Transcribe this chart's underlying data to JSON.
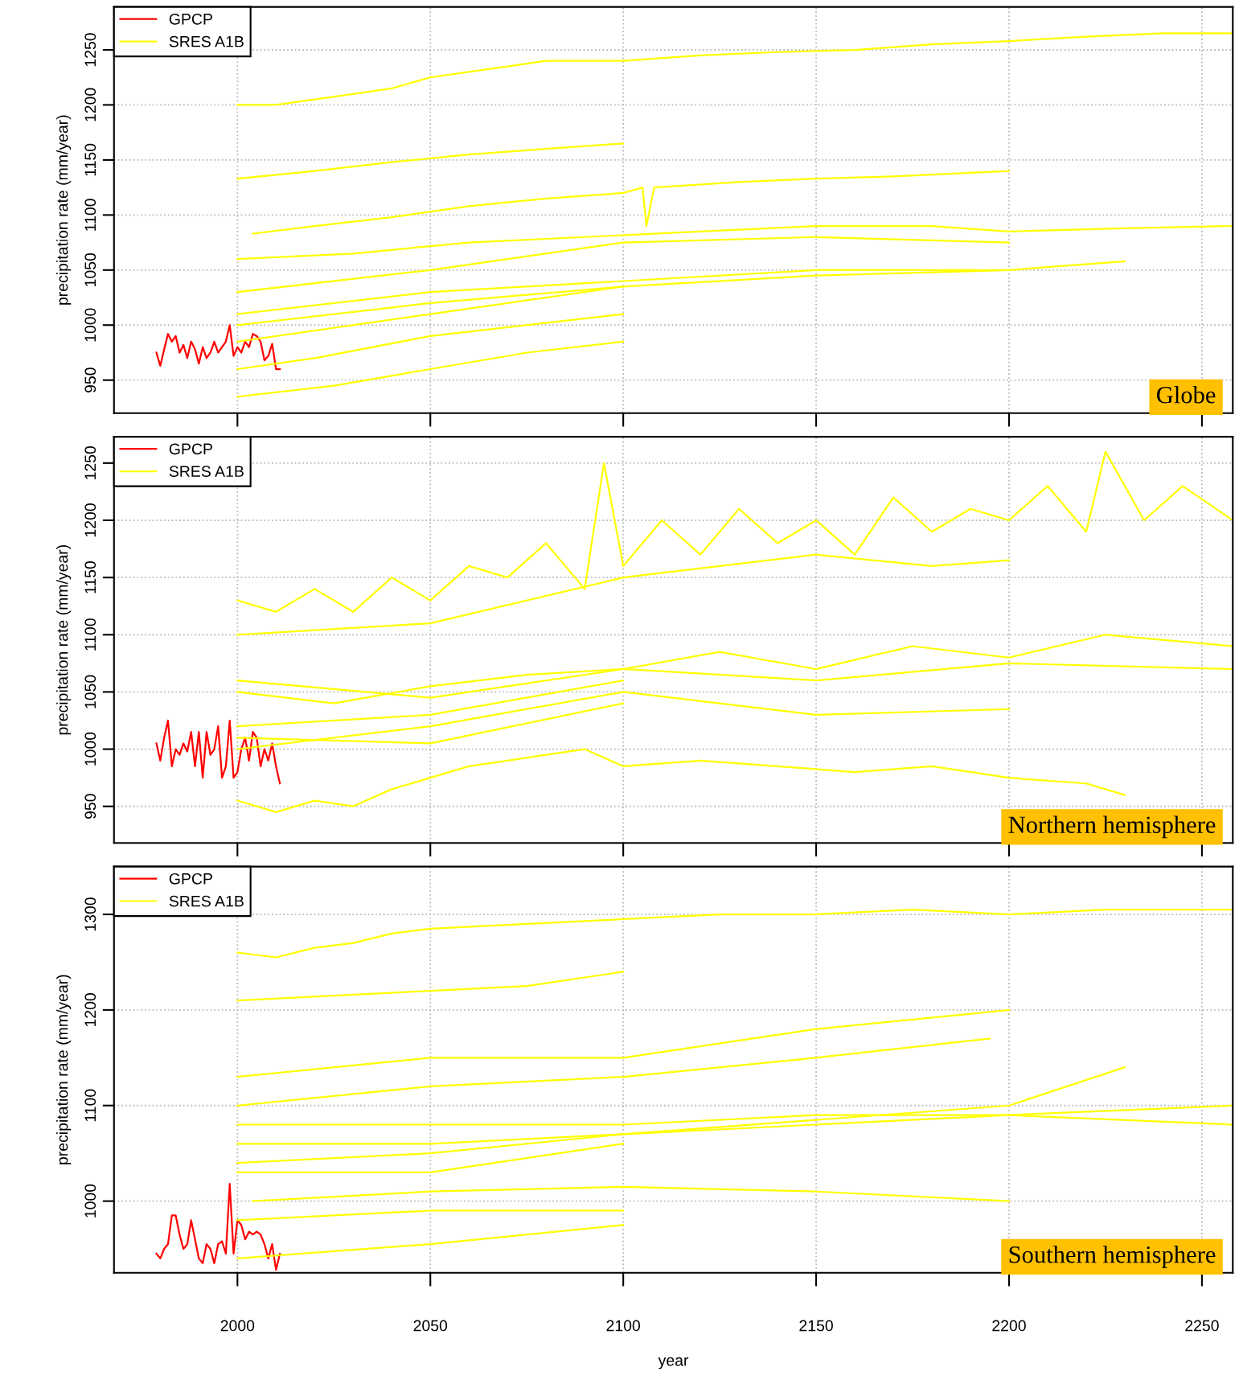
{
  "chart_data": [
    {
      "type": "line",
      "ylabel": "precipitation rate (mm/year)",
      "annotations": [
        "Globe"
      ],
      "xlim": [
        1968,
        2258
      ],
      "ylim": [
        920,
        1289
      ],
      "xticks": [
        2000,
        2050,
        2100,
        2150,
        2200,
        2250
      ],
      "yticks": [
        950,
        1000,
        1050,
        1100,
        1150,
        1200,
        1250
      ],
      "grid": true,
      "legend": "top left",
      "tick_labels": "y",
      "series": [
        {
          "name": "GPCP",
          "color": "#ff0000",
          "x": [
            1979,
            1980,
            1981,
            1982,
            1983,
            1984,
            1985,
            1986,
            1987,
            1988,
            1989,
            1990,
            1991,
            1992,
            1993,
            1994,
            1995,
            1996,
            1997,
            1998,
            1999,
            2000,
            2001,
            2002,
            2003,
            2004,
            2005,
            2006,
            2007,
            2008,
            2009,
            2010,
            2011
          ],
          "values": [
            975,
            963,
            978,
            992,
            985,
            990,
            975,
            982,
            970,
            985,
            978,
            965,
            980,
            970,
            975,
            985,
            975,
            980,
            985,
            1000,
            972,
            980,
            975,
            985,
            980,
            992,
            990,
            985,
            968,
            972,
            983,
            960,
            960
          ]
        },
        {
          "name": "SRES A1B",
          "color": "#ffff00",
          "x": [
            2000,
            2010,
            2020,
            2030,
            2040,
            2050,
            2060,
            2070,
            2080,
            2090,
            2100,
            2120,
            2140,
            2160,
            2180,
            2200,
            2220,
            2240,
            2258
          ],
          "values": [
            1200,
            1200,
            1205,
            1210,
            1215,
            1225,
            1230,
            1235,
            1240,
            1240,
            1240,
            1245,
            1248,
            1250,
            1255,
            1258,
            1262,
            1265,
            1265
          ]
        },
        {
          "color": "#ffff00",
          "x": [
            2000,
            2020,
            2040,
            2060,
            2080,
            2100
          ],
          "values": [
            1133,
            1140,
            1148,
            1155,
            1160,
            1165
          ]
        },
        {
          "color": "#ffff00",
          "x": [
            2004,
            2020,
            2040,
            2060,
            2080,
            2100,
            2105,
            2106,
            2108,
            2130,
            2150,
            2170,
            2200
          ],
          "values": [
            1083,
            1090,
            1098,
            1108,
            1115,
            1120,
            1125,
            1090,
            1125,
            1130,
            1133,
            1135,
            1140
          ]
        },
        {
          "color": "#ffff00",
          "x": [
            2000,
            2030,
            2060,
            2090,
            2120,
            2150,
            2180,
            2200,
            2230,
            2258
          ],
          "values": [
            1060,
            1065,
            1075,
            1080,
            1085,
            1090,
            1090,
            1085,
            1088,
            1090
          ]
        },
        {
          "color": "#ffff00",
          "x": [
            2000,
            2050,
            2100,
            2150,
            2200
          ],
          "values": [
            1030,
            1050,
            1075,
            1080,
            1075
          ]
        },
        {
          "color": "#ffff00",
          "x": [
            2000,
            2050,
            2100,
            2150,
            2200,
            2230
          ],
          "values": [
            1010,
            1030,
            1040,
            1050,
            1050,
            1058
          ]
        },
        {
          "color": "#ffff00",
          "x": [
            2000,
            2050,
            2100,
            2150,
            2200
          ],
          "values": [
            1000,
            1020,
            1035,
            1045,
            1050
          ]
        },
        {
          "color": "#ffff00",
          "x": [
            2000,
            2050,
            2100
          ],
          "values": [
            985,
            1010,
            1035
          ]
        },
        {
          "color": "#ffff00",
          "x": [
            2000,
            2020,
            2050,
            2100
          ],
          "values": [
            960,
            970,
            990,
            1010
          ]
        },
        {
          "color": "#ffff00",
          "x": [
            2000,
            2025,
            2050,
            2075,
            2100
          ],
          "values": [
            935,
            945,
            960,
            975,
            985
          ]
        }
      ]
    },
    {
      "type": "line",
      "ylabel": "precipitation rate (mm/year)",
      "annotations": [
        "Northern hemisphere"
      ],
      "xlim": [
        1968,
        2258
      ],
      "ylim": [
        918,
        1273
      ],
      "xticks": [
        2000,
        2050,
        2100,
        2150,
        2200,
        2250
      ],
      "yticks": [
        950,
        1000,
        1050,
        1100,
        1150,
        1200,
        1250
      ],
      "grid": true,
      "legend": "top left",
      "tick_labels": "y",
      "series": [
        {
          "name": "GPCP",
          "color": "#ff0000",
          "x": [
            1979,
            1980,
            1981,
            1982,
            1983,
            1984,
            1985,
            1986,
            1987,
            1988,
            1989,
            1990,
            1991,
            1992,
            1993,
            1994,
            1995,
            1996,
            1997,
            1998,
            1999,
            2000,
            2001,
            2002,
            2003,
            2004,
            2005,
            2006,
            2007,
            2008,
            2009,
            2010,
            2011
          ],
          "values": [
            1005,
            990,
            1010,
            1025,
            985,
            1000,
            995,
            1005,
            998,
            1015,
            985,
            1015,
            975,
            1015,
            995,
            1000,
            1020,
            975,
            985,
            1025,
            975,
            980,
            1000,
            1010,
            990,
            1015,
            1010,
            985,
            1000,
            990,
            1005,
            985,
            970
          ]
        },
        {
          "name": "SRES A1B",
          "color": "#ffff00",
          "x": [
            2000,
            2010,
            2020,
            2030,
            2040,
            2050,
            2060,
            2070,
            2080,
            2090,
            2095,
            2100,
            2110,
            2120,
            2130,
            2140,
            2150,
            2160,
            2170,
            2180,
            2190,
            2200,
            2210,
            2220,
            2225,
            2235,
            2245,
            2258
          ],
          "values": [
            1130,
            1120,
            1140,
            1120,
            1150,
            1130,
            1160,
            1150,
            1180,
            1140,
            1250,
            1160,
            1200,
            1170,
            1210,
            1180,
            1200,
            1170,
            1220,
            1190,
            1210,
            1200,
            1230,
            1190,
            1260,
            1200,
            1230,
            1200
          ]
        },
        {
          "color": "#ffff00",
          "x": [
            2000,
            2050,
            2100,
            2150,
            2180,
            2200
          ],
          "values": [
            1100,
            1110,
            1150,
            1170,
            1160,
            1165
          ]
        },
        {
          "color": "#ffff00",
          "x": [
            2000,
            2025,
            2050,
            2075,
            2100,
            2125,
            2150,
            2175,
            2200,
            2225,
            2258
          ],
          "values": [
            1050,
            1040,
            1055,
            1065,
            1070,
            1085,
            1070,
            1090,
            1080,
            1100,
            1090
          ]
        },
        {
          "color": "#ffff00",
          "x": [
            2000,
            2050,
            2100,
            2150,
            2200,
            2258
          ],
          "values": [
            1060,
            1045,
            1070,
            1060,
            1075,
            1070
          ]
        },
        {
          "color": "#ffff00",
          "x": [
            2000,
            2050,
            2100
          ],
          "values": [
            1020,
            1030,
            1060
          ]
        },
        {
          "color": "#ffff00",
          "x": [
            2000,
            2050,
            2100,
            2150,
            2200
          ],
          "values": [
            1000,
            1020,
            1050,
            1030,
            1035
          ]
        },
        {
          "color": "#ffff00",
          "x": [
            2000,
            2050,
            2100
          ],
          "values": [
            1010,
            1005,
            1040
          ]
        },
        {
          "color": "#ffff00",
          "x": [
            2000,
            2010,
            2020,
            2030,
            2040,
            2050,
            2060,
            2070,
            2080,
            2090,
            2100,
            2120,
            2140,
            2160,
            2180,
            2200,
            2220,
            2230
          ],
          "values": [
            955,
            945,
            955,
            950,
            965,
            975,
            985,
            990,
            995,
            1000,
            985,
            990,
            985,
            980,
            985,
            975,
            970,
            960
          ]
        }
      ]
    },
    {
      "type": "line",
      "ylabel": "precipitation rate (mm/year)",
      "xlabel": "year",
      "annotations": [
        "Southern hemisphere"
      ],
      "xlim": [
        1968,
        2258
      ],
      "ylim": [
        925,
        1350
      ],
      "xticks": [
        2000,
        2050,
        2100,
        2150,
        2200,
        2250
      ],
      "yticks": [
        1000,
        1100,
        1200,
        1300
      ],
      "grid": true,
      "legend": "top left",
      "series": [
        {
          "name": "GPCP",
          "color": "#ff0000",
          "x": [
            1979,
            1980,
            1981,
            1982,
            1983,
            1984,
            1985,
            1986,
            1987,
            1988,
            1989,
            1990,
            1991,
            1992,
            1993,
            1994,
            1995,
            1996,
            1997,
            1998,
            1999,
            2000,
            2001,
            2002,
            2003,
            2004,
            2005,
            2006,
            2007,
            2008,
            2009,
            2010,
            2011
          ],
          "values": [
            945,
            940,
            950,
            955,
            985,
            985,
            965,
            950,
            955,
            980,
            960,
            940,
            935,
            955,
            950,
            935,
            955,
            958,
            945,
            1018,
            945,
            980,
            975,
            960,
            968,
            965,
            968,
            965,
            955,
            940,
            955,
            928,
            945
          ]
        },
        {
          "name": "SRES A1B",
          "color": "#ffff00",
          "x": [
            2000,
            2010,
            2020,
            2030,
            2040,
            2050,
            2075,
            2100,
            2125,
            2150,
            2175,
            2200,
            2225,
            2258
          ],
          "values": [
            1260,
            1255,
            1265,
            1270,
            1280,
            1285,
            1290,
            1295,
            1300,
            1300,
            1305,
            1300,
            1305,
            1305
          ]
        },
        {
          "color": "#ffff00",
          "x": [
            2000,
            2025,
            2050,
            2075,
            2100
          ],
          "values": [
            1210,
            1215,
            1220,
            1225,
            1240
          ]
        },
        {
          "color": "#ffff00",
          "x": [
            2000,
            2050,
            2100,
            2150,
            2200
          ],
          "values": [
            1130,
            1150,
            1150,
            1180,
            1200
          ]
        },
        {
          "color": "#ffff00",
          "x": [
            2000,
            2050,
            2100,
            2150,
            2195
          ],
          "values": [
            1100,
            1120,
            1130,
            1150,
            1170
          ]
        },
        {
          "color": "#ffff00",
          "x": [
            2000,
            2050,
            2100,
            2150,
            2200,
            2258
          ],
          "values": [
            1080,
            1080,
            1080,
            1090,
            1090,
            1100
          ]
        },
        {
          "color": "#ffff00",
          "x": [
            2000,
            2050,
            2100,
            2150,
            2200,
            2230
          ],
          "values": [
            1060,
            1060,
            1070,
            1085,
            1100,
            1140
          ]
        },
        {
          "color": "#ffff00",
          "x": [
            2000,
            2050,
            2100,
            2150,
            2200,
            2258
          ],
          "values": [
            1040,
            1050,
            1070,
            1080,
            1090,
            1080
          ]
        },
        {
          "color": "#ffff00",
          "x": [
            2000,
            2050,
            2100
          ],
          "values": [
            1030,
            1030,
            1060
          ]
        },
        {
          "color": "#ffff00",
          "x": [
            2004,
            2050,
            2100,
            2150,
            2200
          ],
          "values": [
            1000,
            1010,
            1015,
            1010,
            1000
          ]
        },
        {
          "color": "#ffff00",
          "x": [
            2000,
            2050,
            2100
          ],
          "values": [
            980,
            990,
            990
          ]
        },
        {
          "color": "#ffff00",
          "x": [
            2000,
            2050,
            2100
          ],
          "values": [
            940,
            955,
            975
          ]
        }
      ]
    }
  ]
}
